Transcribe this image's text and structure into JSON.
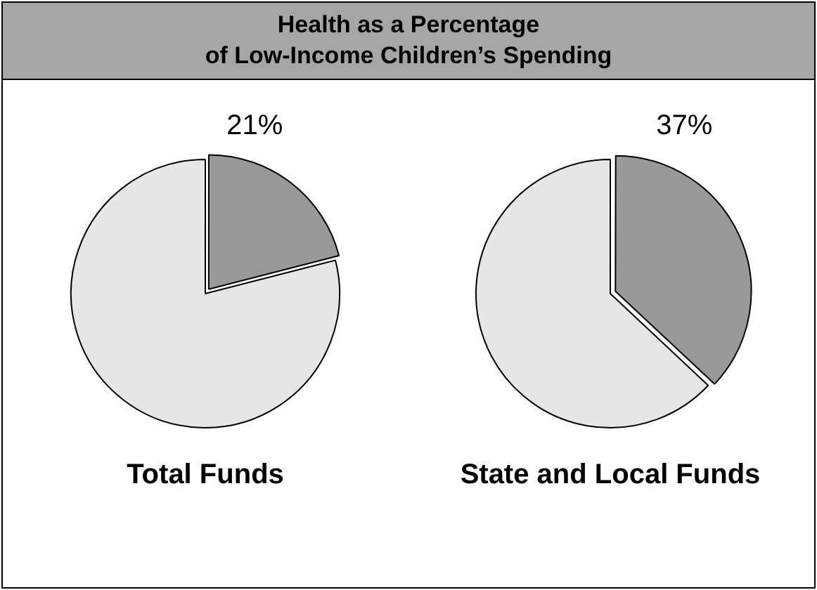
{
  "chart_data": [
    {
      "type": "pie",
      "title": "Health as a Percentage\nof Low-Income Children’s Spending",
      "xlabel": "Total Funds",
      "categories": [
        null,
        null
      ],
      "values": [
        21,
        79
      ],
      "colors": [
        "#999999",
        "#e6e6e6"
      ],
      "value_labels": [
        "21%",
        null
      ],
      "legend": false
    },
    {
      "type": "pie",
      "xlabel": "State and Local Funds",
      "categories": [
        null,
        null
      ],
      "values": [
        37,
        63
      ],
      "colors": [
        "#999999",
        "#e6e6e6"
      ],
      "value_labels": [
        "37%",
        null
      ],
      "legend": false
    }
  ]
}
